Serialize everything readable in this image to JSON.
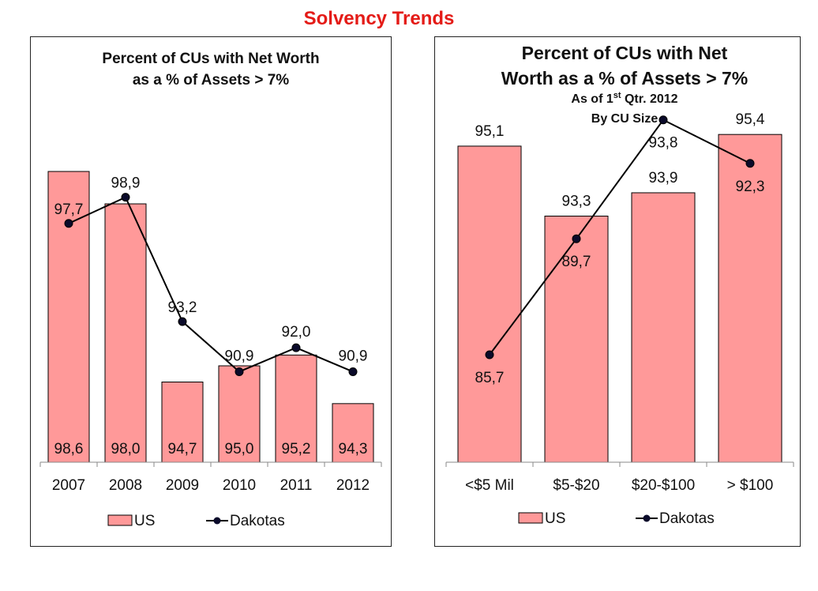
{
  "page_title": "Solvency Trends",
  "colors": {
    "title": "#e41b17",
    "us_bar_fill": "#ff9999",
    "us_bar_stroke": "#000000",
    "dakotas_line": "#000000",
    "dakotas_marker": "#0a0a2a"
  },
  "chart_data": [
    {
      "type": "bar",
      "title_lines": [
        "Percent of CUs with Net Worth",
        "as a % of Assets > 7%"
      ],
      "categories": [
        "2007",
        "2008",
        "2009",
        "2010",
        "2011",
        "2012"
      ],
      "series": [
        {
          "name": "US",
          "type": "bar",
          "values": [
            98.6,
            98.0,
            94.7,
            95.0,
            95.2,
            94.3
          ],
          "labels": [
            "98,6",
            "98,0",
            "94,7",
            "95,0",
            "95,2",
            "94,3"
          ]
        },
        {
          "name": "Dakotas",
          "type": "line",
          "values": [
            97.7,
            98.9,
            93.2,
            90.9,
            92.0,
            90.9
          ],
          "labels": [
            "97,7",
            "98,9",
            "93,2",
            "90,9",
            "92,0",
            "90,9"
          ]
        }
      ],
      "legend": "bottom"
    },
    {
      "type": "bar",
      "title_lines": [
        "Percent of CUs with Net",
        "Worth as a % of Assets > 7%"
      ],
      "subtitle_prefix": "As of 1",
      "subtitle_sup": "st",
      "subtitle_suffix": " Qtr. 2012",
      "subtitle2": "By CU Size",
      "categories": [
        "<$5 Mil",
        "$5-$20",
        "$20-$100",
        "> $100"
      ],
      "series": [
        {
          "name": "US",
          "type": "bar",
          "values": [
            95.1,
            93.3,
            93.9,
            95.4
          ],
          "labels": [
            "95,1",
            "93,3",
            "93,9",
            "95,4"
          ]
        },
        {
          "name": "Dakotas",
          "type": "line",
          "values": [
            85.7,
            89.7,
            93.8,
            92.3
          ],
          "labels": [
            "85,7",
            "89,7",
            "93,8",
            "92,3"
          ]
        }
      ],
      "legend": "bottom"
    }
  ]
}
